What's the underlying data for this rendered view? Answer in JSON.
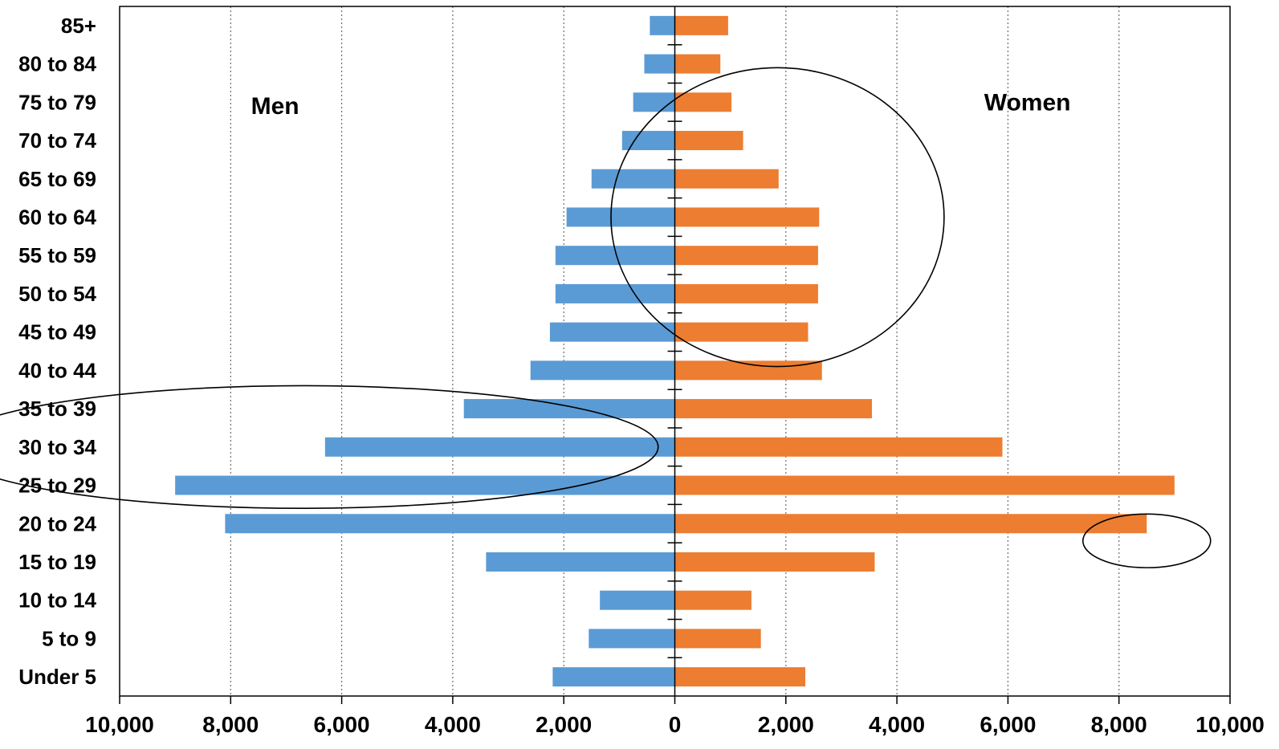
{
  "chart_data": {
    "type": "bar",
    "orientation": "horizontal",
    "subtype": "population-pyramid",
    "categories": [
      "Under 5",
      "5 to 9",
      "10 to 14",
      "15 to 19",
      "20 to 24",
      "25 to 29",
      "30 to 34",
      "35 to 39",
      "40 to 44",
      "45 to 49",
      "50 to 54",
      "55 to 59",
      "60 to 64",
      "65 to 69",
      "70 to 74",
      "75 to 79",
      "80 to 84",
      "85+"
    ],
    "series": [
      {
        "color": "#5b9bd5",
        "values": [
          -2200,
          -1550,
          -1350,
          -3400,
          -8100,
          -9000,
          -6300,
          -3800,
          -2600,
          -2250,
          -2150,
          -2150,
          -1950,
          -1500,
          -950,
          -750,
          -550,
          -450
        ]
      },
      {
        "color": "#ed7d31",
        "values": [
          2350,
          1550,
          1380,
          3600,
          8500,
          9000,
          5900,
          3550,
          2650,
          2400,
          2580,
          2580,
          2600,
          1870,
          1230,
          1020,
          820,
          960
        ]
      }
    ],
    "xlim": [
      -10000,
      10000
    ],
    "xticks": [
      -10000,
      -8000,
      -6000,
      -4000,
      -2000,
      0,
      2000,
      4000,
      6000,
      8000,
      10000
    ],
    "xtick_labels": [
      "10,000",
      "8,000",
      "6,000",
      "4,000",
      "2,000",
      "0",
      "2,000",
      "4,000",
      "6,000",
      "8,000",
      "10,000"
    ],
    "grid": {
      "vertical": true,
      "style": "dotted"
    },
    "legend": "none",
    "annotations": [
      {
        "text": "Men",
        "x": -7200,
        "y": 15.4
      },
      {
        "text": "Women",
        "x": 6350,
        "y": 15.5
      },
      {
        "shape": "ellipse",
        "cx": 1850,
        "cy": 12.5,
        "rx": 3000,
        "ry": 3.9
      },
      {
        "shape": "ellipse",
        "cx": -6700,
        "cy": 6.5,
        "rx": 6400,
        "ry": 1.6
      },
      {
        "shape": "ellipse",
        "cx": 8500,
        "cy": 4.05,
        "rx": 1150,
        "ry": 0.7
      }
    ]
  }
}
